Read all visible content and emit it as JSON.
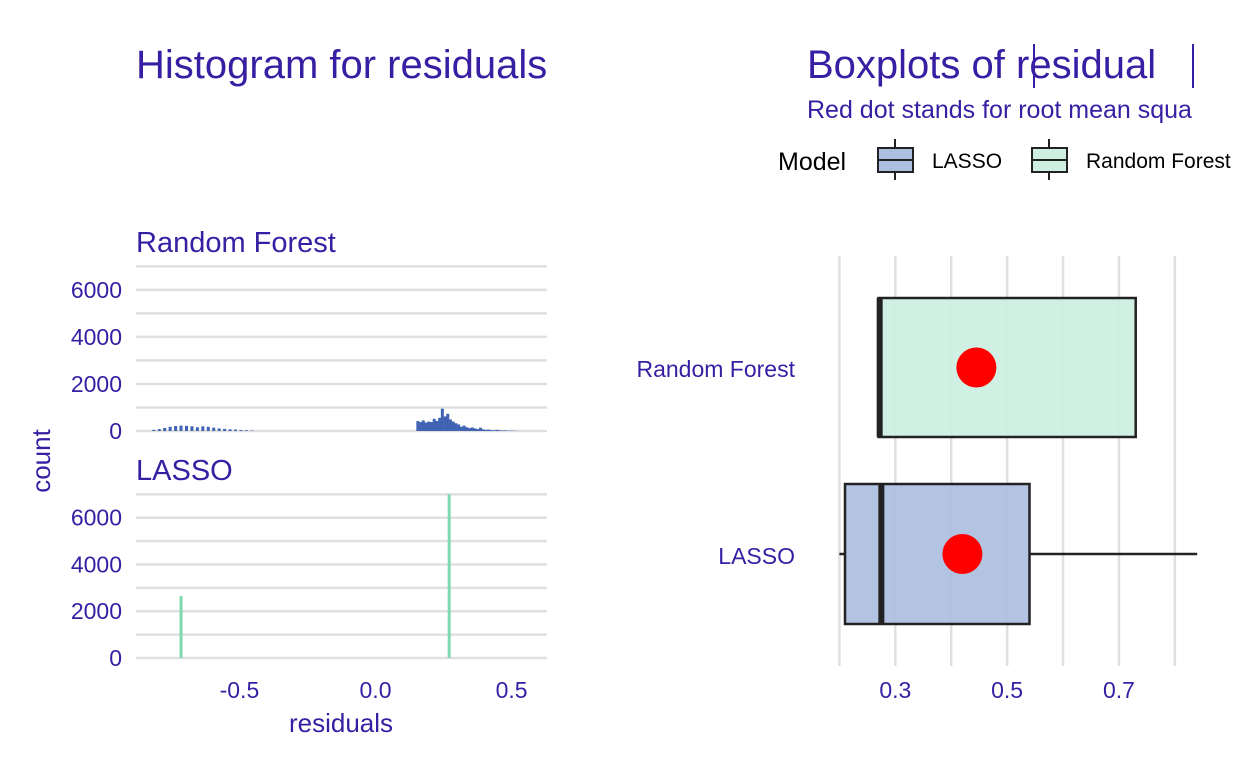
{
  "colors": {
    "text": "#371ea3",
    "random_forest_hist": "#4063b3",
    "lasso_hist": "#7fd9ae",
    "random_forest_box": "#ccefe1",
    "lasso_box": "#adbfdf",
    "rmse_dot": "#ff0000",
    "grid": "#e0e0e0"
  },
  "chart_data": [
    {
      "type": "bar",
      "subtype": "histogram",
      "title": "Histogram for residuals",
      "xlabel": "residuals",
      "ylabel": "count",
      "xlim": [
        -0.88,
        0.63
      ],
      "x_ticks": [
        -0.5,
        0.0,
        0.5
      ],
      "x_tick_labels": [
        "-0.5",
        "0.0",
        "0.5"
      ],
      "y_ticks": [
        0,
        2000,
        4000,
        6000
      ],
      "y_tick_labels": [
        "0",
        "2000",
        "4000",
        "6000"
      ],
      "grid": true,
      "facets": [
        {
          "label": "Random Forest",
          "ylim": [
            0,
            7100
          ],
          "bin_width": 0.01,
          "bins": [
            [
              -0.82,
              50
            ],
            [
              -0.8,
              80
            ],
            [
              -0.78,
              130
            ],
            [
              -0.76,
              180
            ],
            [
              -0.74,
              210
            ],
            [
              -0.72,
              230
            ],
            [
              -0.7,
              220
            ],
            [
              -0.68,
              200
            ],
            [
              -0.66,
              160
            ],
            [
              -0.64,
              200
            ],
            [
              -0.62,
              180
            ],
            [
              -0.6,
              140
            ],
            [
              -0.58,
              110
            ],
            [
              -0.56,
              90
            ],
            [
              -0.54,
              70
            ],
            [
              -0.52,
              60
            ],
            [
              -0.5,
              40
            ],
            [
              -0.48,
              30
            ],
            [
              -0.46,
              20
            ],
            [
              0.15,
              420
            ],
            [
              0.16,
              380
            ],
            [
              0.17,
              450
            ],
            [
              0.18,
              360
            ],
            [
              0.19,
              400
            ],
            [
              0.2,
              380
            ],
            [
              0.21,
              520
            ],
            [
              0.22,
              430
            ],
            [
              0.23,
              560
            ],
            [
              0.24,
              950
            ],
            [
              0.25,
              620
            ],
            [
              0.26,
              730
            ],
            [
              0.27,
              490
            ],
            [
              0.28,
              400
            ],
            [
              0.29,
              330
            ],
            [
              0.3,
              280
            ],
            [
              0.31,
              180
            ],
            [
              0.32,
              230
            ],
            [
              0.33,
              160
            ],
            [
              0.34,
              120
            ],
            [
              0.35,
              150
            ],
            [
              0.36,
              110
            ],
            [
              0.37,
              80
            ],
            [
              0.38,
              140
            ],
            [
              0.39,
              70
            ],
            [
              0.4,
              50
            ],
            [
              0.41,
              60
            ],
            [
              0.42,
              40
            ],
            [
              0.43,
              30
            ],
            [
              0.44,
              50
            ],
            [
              0.45,
              30
            ],
            [
              0.46,
              20
            ],
            [
              0.47,
              25
            ],
            [
              0.48,
              15
            ],
            [
              0.49,
              15
            ],
            [
              0.5,
              10
            ],
            [
              0.51,
              8
            ]
          ]
        },
        {
          "label": "LASSO",
          "ylim": [
            0,
            7100
          ],
          "bin_width": 0.01,
          "bins": [
            [
              -0.72,
              2650
            ],
            [
              0.265,
              7000
            ]
          ]
        }
      ]
    },
    {
      "type": "boxplot",
      "title_prefix": "Boxplots of ",
      "title_term": "residual",
      "subtitle": "Red dot stands for root mean squa",
      "legend_title": "Model",
      "legend_position": "top",
      "legend": [
        {
          "name": "LASSO",
          "color": "#adbfdf"
        },
        {
          "name": "Random Forest",
          "color": "#ccefe1"
        }
      ],
      "xlim": [
        0.176,
        0.845
      ],
      "x_ticks": [
        0.3,
        0.5,
        0.7
      ],
      "x_tick_labels": [
        "0.3",
        "0.5",
        "0.7"
      ],
      "x_minor_ticks": [
        0.2,
        0.4,
        0.6,
        0.8
      ],
      "grid": true,
      "series": [
        {
          "name": "Random Forest",
          "whisker_low": 0.27,
          "q1": 0.27,
          "median": 0.272,
          "q3": 0.73,
          "whisker_high": 0.73,
          "rmse": 0.445
        },
        {
          "name": "LASSO",
          "whisker_low": 0.2,
          "q1": 0.21,
          "median": 0.275,
          "q3": 0.54,
          "whisker_high": 0.84,
          "rmse": 0.42
        }
      ]
    }
  ]
}
